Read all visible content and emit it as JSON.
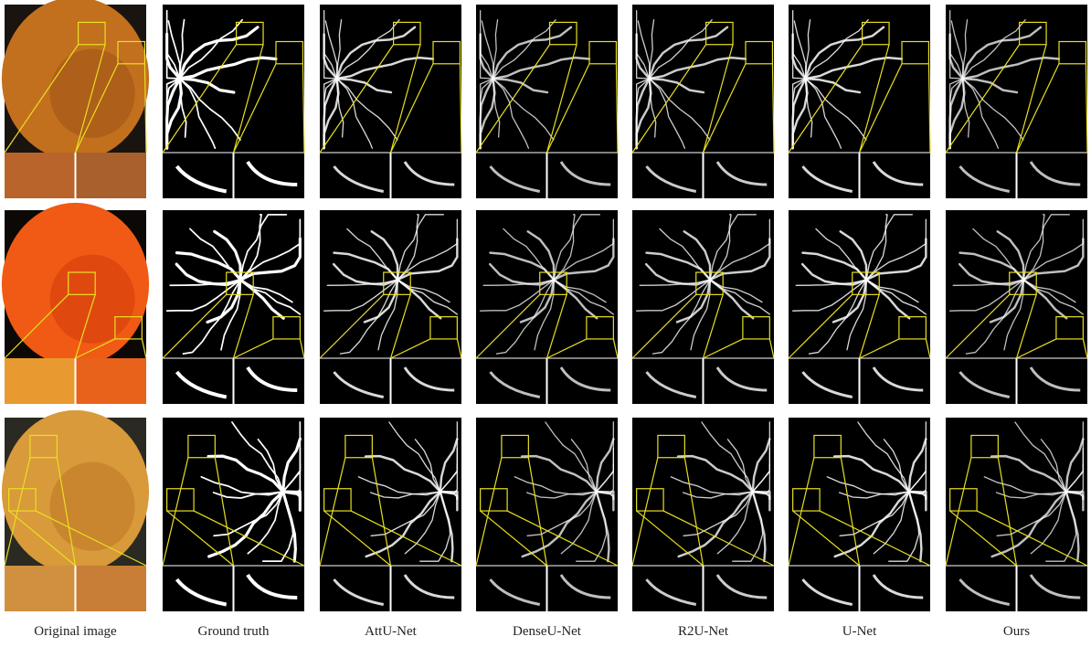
{
  "columns": [
    "Original image",
    "Ground truth",
    "AttU-Net",
    "DenseU-Net",
    "R2U-Net",
    "U-Net",
    "Ours"
  ]
}
